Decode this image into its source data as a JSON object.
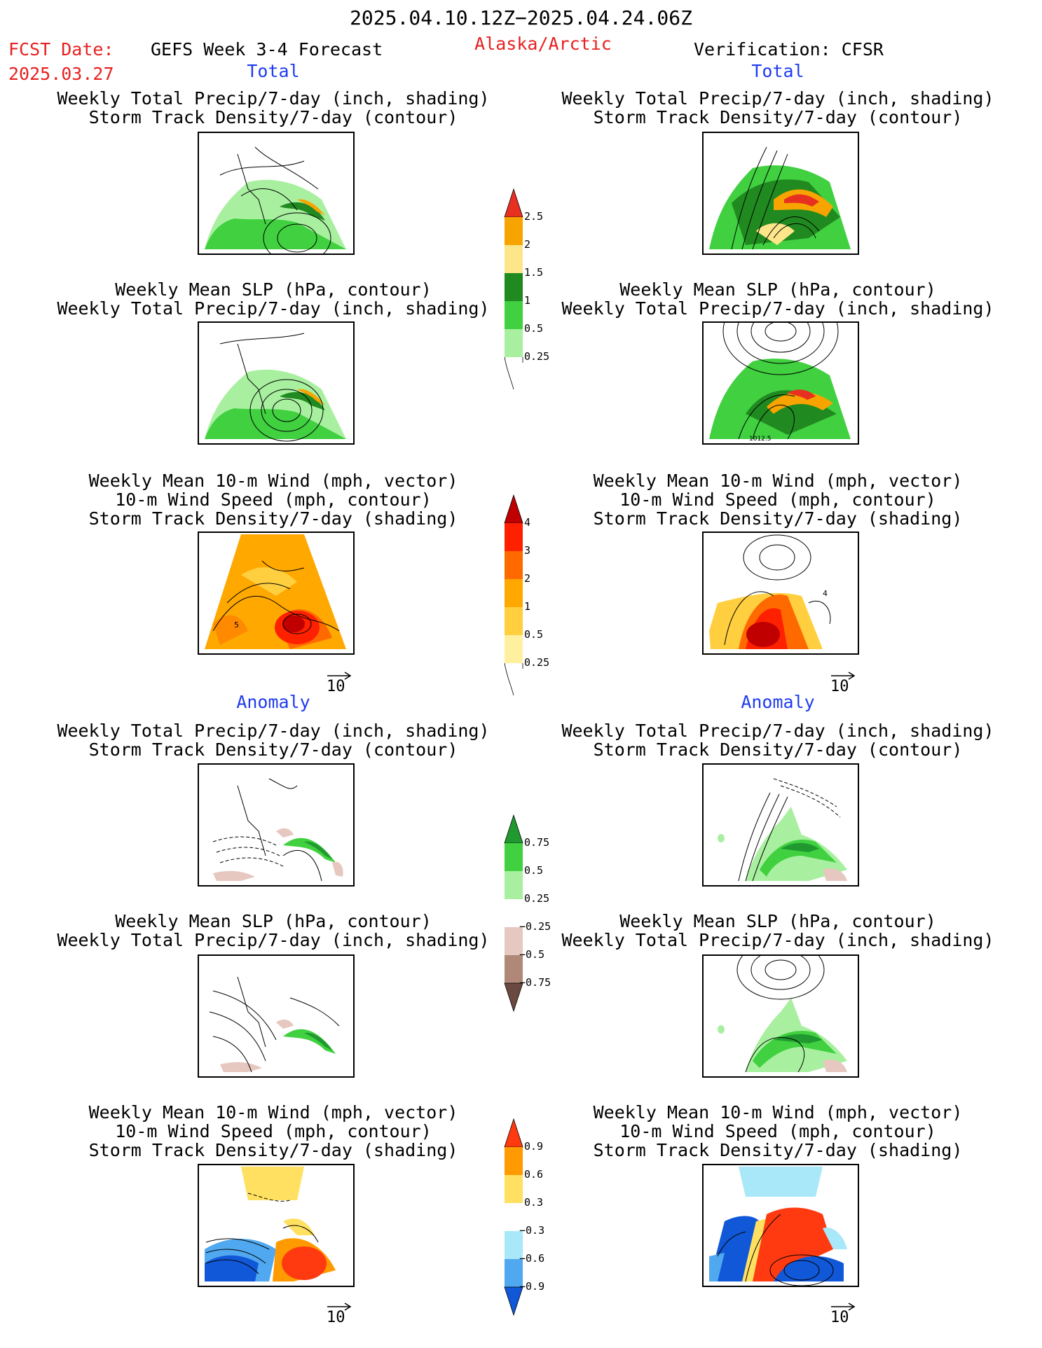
{
  "header": {
    "date_range": "2025.04.10.12Z−2025.04.24.06Z",
    "fcst_label": "FCST Date:",
    "fcst_date": "2025.03.27",
    "forecast_title": "GEFS Week 3-4 Forecast",
    "region": "Alaska/Arctic",
    "verification": "Verification: CFSR"
  },
  "sections": {
    "total": "Total",
    "anomaly": "Anomaly"
  },
  "titles": {
    "precip_track": [
      "Weekly Total Precip/7-day (inch, shading)",
      "Storm Track Density/7-day (contour)"
    ],
    "slp_precip": [
      "Weekly Mean SLP (hPa, contour)",
      "Weekly Total Precip/7-day (inch, shading)"
    ],
    "wind_track": [
      "Weekly Mean 10-m Wind (mph, vector)",
      "10-m Wind Speed (mph, contour)",
      "Storm Track Density/7-day (shading)"
    ]
  },
  "wind_ref": "10",
  "contour_label_slp": "1012.5",
  "colorbars": {
    "precip_total": {
      "labels": [
        "2.5",
        "2",
        "1.5",
        "1",
        "0.5",
        "0.25"
      ],
      "colors": [
        "#e83020",
        "#f8a400",
        "#fde68a",
        "#208a20",
        "#40d040",
        "#a8f0a0"
      ]
    },
    "track_total": {
      "labels": [
        "4",
        "3",
        "2",
        "1",
        "0.5",
        "0.25"
      ],
      "colors": [
        "#c00000",
        "#ff2000",
        "#ff6a00",
        "#ffa800",
        "#ffcf40",
        "#fff0a0",
        "#fffbe0"
      ]
    },
    "precip_anom": {
      "labels": [
        "0.75",
        "0.5",
        "0.25",
        "−0.25",
        "−0.5",
        "−0.75"
      ],
      "colors": [
        "#209a30",
        "#40d040",
        "#a8f0a0",
        "#ffffff",
        "#e6c8c0",
        "#b08878",
        "#6a4a40"
      ]
    },
    "track_anom": {
      "labels": [
        "0.9",
        "0.6",
        "0.3",
        "−0.3",
        "−0.6",
        "−0.9"
      ],
      "colors": [
        "#ff3a10",
        "#ff9a00",
        "#ffe060",
        "#ffffff",
        "#a8e8f8",
        "#50a8f0",
        "#1058d8"
      ]
    }
  }
}
